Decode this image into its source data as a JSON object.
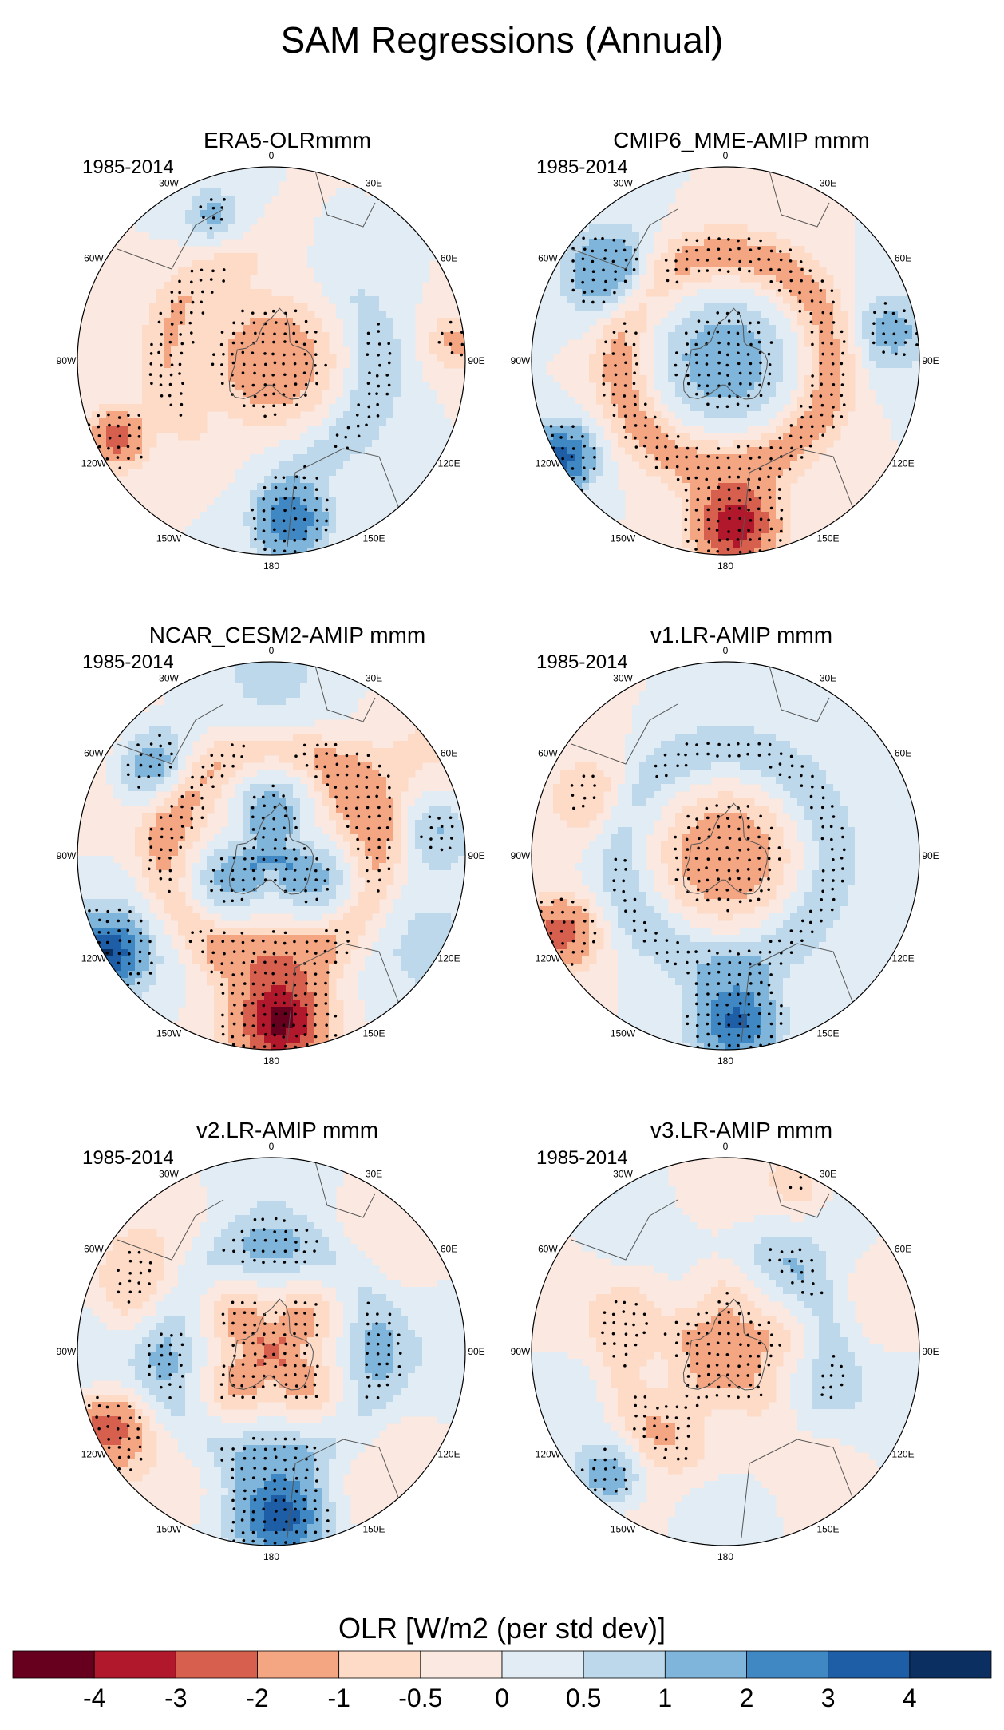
{
  "figure": {
    "title": "SAM Regressions (Annual)"
  },
  "panels": [
    {
      "id": "era5",
      "title": "ERA5-OLRmmm",
      "period": "1985-2014",
      "seed": 11,
      "phase": "era5"
    },
    {
      "id": "cmip6",
      "title": "CMIP6_MME-AMIP  mmm",
      "period": "1985-2014",
      "seed": 23,
      "phase": "cmip6"
    },
    {
      "id": "cesm2",
      "title": "NCAR_CESM2-AMIP  mmm",
      "period": "1985-2014",
      "seed": 37,
      "phase": "cesm2"
    },
    {
      "id": "v1",
      "title": "v1.LR-AMIP  mmm",
      "period": "1985-2014",
      "seed": 41,
      "phase": "v1"
    },
    {
      "id": "v2",
      "title": "v2.LR-AMIP  mmm",
      "period": "1985-2014",
      "seed": 53,
      "phase": "v2"
    },
    {
      "id": "v3",
      "title": "v3.LR-AMIP  mmm",
      "period": "1985-2014",
      "seed": 67,
      "phase": "v3"
    }
  ],
  "longitude_labels": [
    "0",
    "30E",
    "60E",
    "90E",
    "120E",
    "150E",
    "180",
    "150W",
    "120W",
    "90W",
    "60W",
    "30W"
  ],
  "colorbar": {
    "label": "OLR [W/m2 (per std dev)]",
    "tick_labels": [
      "-4",
      "-3",
      "-2",
      "-1",
      "-0.5",
      "0",
      "0.5",
      "1",
      "2",
      "3",
      "4"
    ],
    "levels": [
      -4,
      -3,
      -2,
      -1,
      -0.5,
      0,
      0.5,
      1,
      2,
      3,
      4
    ],
    "colors": [
      "#67001f",
      "#b2182b",
      "#d6604d",
      "#f4a582",
      "#fddbc7",
      "#fbe8e0",
      "#e1ecf4",
      "#bcd8ea",
      "#7fb5da",
      "#3f88c3",
      "#1e5ea6",
      "#0a2f60"
    ]
  }
}
